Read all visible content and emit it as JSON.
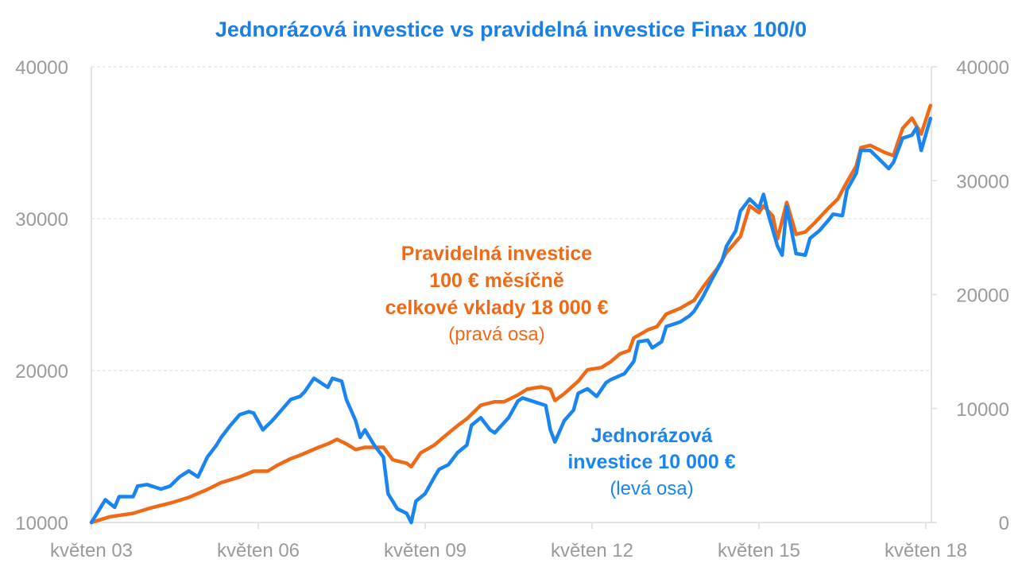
{
  "chart_data": {
    "type": "line",
    "title": "Jednorázová investice vs pravidelná investice Finax 100/0",
    "x_unit": "months since May 2003",
    "x_ticks": [
      {
        "month": 0,
        "label": "květen 03"
      },
      {
        "month": 36,
        "label": "květen 06"
      },
      {
        "month": 72,
        "label": "květen 09"
      },
      {
        "month": 108,
        "label": "květen 12"
      },
      {
        "month": 144,
        "label": "květen 15"
      },
      {
        "month": 180,
        "label": "květen 18"
      }
    ],
    "xlim": [
      0,
      180
    ],
    "y_left": {
      "ylim": [
        10000,
        40000
      ],
      "ticks": [
        "10000",
        "20000",
        "30000",
        "40000"
      ]
    },
    "y_right": {
      "ylim": [
        0,
        40000
      ],
      "ticks": [
        "0",
        "10000",
        "20000",
        "30000",
        "40000"
      ]
    },
    "grid": true,
    "colors": {
      "title": "#1a7fe6",
      "lump": "#1a85f0",
      "regular": "#ef6a17",
      "axis": "#9a9a9a"
    },
    "annotations": {
      "regular": [
        "Pravidelná investice",
        "100 € měsíčně",
        "celkové vklady 18 000 €",
        "(pravá osa)"
      ],
      "lump": [
        "Jednorázová",
        "investice 10 000 €",
        "(levá osa)"
      ]
    },
    "series": [
      {
        "name": "Jednorázová investice 10 000 € (levá osa)",
        "axis": "left",
        "points": [
          [
            0,
            10000
          ],
          [
            3,
            11500
          ],
          [
            5,
            11000
          ],
          [
            6,
            11700
          ],
          [
            9,
            11700
          ],
          [
            10,
            12400
          ],
          [
            12,
            12500
          ],
          [
            15,
            12200
          ],
          [
            17,
            12400
          ],
          [
            19,
            13000
          ],
          [
            21,
            13400
          ],
          [
            23,
            13000
          ],
          [
            25,
            14300
          ],
          [
            27,
            15100
          ],
          [
            28,
            15600
          ],
          [
            30,
            16400
          ],
          [
            32,
            17100
          ],
          [
            34,
            17300
          ],
          [
            35,
            17200
          ],
          [
            37,
            16100
          ],
          [
            39,
            16700
          ],
          [
            41,
            17400
          ],
          [
            43,
            18100
          ],
          [
            45,
            18300
          ],
          [
            46,
            18600
          ],
          [
            48,
            19500
          ],
          [
            51,
            18900
          ],
          [
            52,
            19500
          ],
          [
            54,
            19300
          ],
          [
            55,
            18100
          ],
          [
            57,
            16700
          ],
          [
            58,
            15600
          ],
          [
            59,
            16100
          ],
          [
            61,
            15100
          ],
          [
            63,
            14300
          ],
          [
            64,
            11900
          ],
          [
            66,
            10900
          ],
          [
            68,
            10600
          ],
          [
            69,
            10000
          ],
          [
            70,
            11400
          ],
          [
            72,
            11900
          ],
          [
            74,
            13000
          ],
          [
            75,
            13500
          ],
          [
            77,
            13800
          ],
          [
            79,
            14600
          ],
          [
            81,
            15100
          ],
          [
            82,
            16400
          ],
          [
            84,
            16900
          ],
          [
            86,
            16100
          ],
          [
            87,
            15900
          ],
          [
            90,
            16900
          ],
          [
            92,
            18000
          ],
          [
            93,
            18200
          ],
          [
            95,
            18000
          ],
          [
            98,
            17700
          ],
          [
            99,
            16100
          ],
          [
            100,
            15300
          ],
          [
            102,
            16700
          ],
          [
            104,
            17400
          ],
          [
            105,
            18500
          ],
          [
            107,
            18800
          ],
          [
            109,
            18300
          ],
          [
            111,
            19200
          ],
          [
            112,
            19400
          ],
          [
            115,
            19800
          ],
          [
            117,
            20600
          ],
          [
            118,
            21900
          ],
          [
            120,
            22000
          ],
          [
            121,
            21500
          ],
          [
            123,
            21900
          ],
          [
            124,
            22900
          ],
          [
            127,
            23200
          ],
          [
            129,
            23600
          ],
          [
            130,
            23900
          ],
          [
            132,
            24900
          ],
          [
            134,
            26100
          ],
          [
            136,
            27200
          ],
          [
            137,
            28200
          ],
          [
            139,
            29200
          ],
          [
            140,
            30500
          ],
          [
            142,
            31300
          ],
          [
            144,
            30700
          ],
          [
            145,
            31600
          ],
          [
            146,
            30300
          ],
          [
            148,
            28200
          ],
          [
            149,
            27600
          ],
          [
            150,
            30800
          ],
          [
            152,
            27700
          ],
          [
            154,
            27600
          ],
          [
            155,
            28700
          ],
          [
            157,
            29200
          ],
          [
            159,
            29900
          ],
          [
            160,
            30300
          ],
          [
            162,
            30200
          ],
          [
            163,
            31900
          ],
          [
            165,
            33000
          ],
          [
            166,
            34500
          ],
          [
            168,
            34500
          ],
          [
            170,
            33900
          ],
          [
            172,
            33300
          ],
          [
            173,
            33700
          ],
          [
            175,
            35300
          ],
          [
            177,
            35500
          ],
          [
            178,
            36000
          ],
          [
            179,
            34500
          ],
          [
            181,
            36600
          ]
        ]
      },
      {
        "name": "Pravidelná investice 100 € měsíčně (pravá osa)",
        "axis": "right",
        "points": [
          [
            0,
            0
          ],
          [
            4,
            500
          ],
          [
            9,
            800
          ],
          [
            13,
            1300
          ],
          [
            17,
            1700
          ],
          [
            21,
            2200
          ],
          [
            25,
            2900
          ],
          [
            28,
            3500
          ],
          [
            32,
            4000
          ],
          [
            35,
            4500
          ],
          [
            38,
            4500
          ],
          [
            40,
            5000
          ],
          [
            43,
            5600
          ],
          [
            45,
            5900
          ],
          [
            49,
            6600
          ],
          [
            51,
            6900
          ],
          [
            53,
            7300
          ],
          [
            55,
            6900
          ],
          [
            57,
            6400
          ],
          [
            59,
            6600
          ],
          [
            61,
            6600
          ],
          [
            63,
            6600
          ],
          [
            65,
            5500
          ],
          [
            68,
            5200
          ],
          [
            69,
            4900
          ],
          [
            71,
            6100
          ],
          [
            74,
            6800
          ],
          [
            76,
            7500
          ],
          [
            79,
            8500
          ],
          [
            81,
            9100
          ],
          [
            84,
            10300
          ],
          [
            87,
            10600
          ],
          [
            89,
            10600
          ],
          [
            92,
            11200
          ],
          [
            94,
            11700
          ],
          [
            97,
            11900
          ],
          [
            99,
            11700
          ],
          [
            100,
            10700
          ],
          [
            102,
            11300
          ],
          [
            105,
            12400
          ],
          [
            107,
            13400
          ],
          [
            110,
            13600
          ],
          [
            112,
            14100
          ],
          [
            114,
            14800
          ],
          [
            116,
            15100
          ],
          [
            117,
            16200
          ],
          [
            120,
            16900
          ],
          [
            122,
            17200
          ],
          [
            124,
            18300
          ],
          [
            127,
            18800
          ],
          [
            130,
            19500
          ],
          [
            132,
            20700
          ],
          [
            135,
            22300
          ],
          [
            137,
            23700
          ],
          [
            140,
            25100
          ],
          [
            142,
            27800
          ],
          [
            144,
            27200
          ],
          [
            145,
            27800
          ],
          [
            147,
            26900
          ],
          [
            148,
            24900
          ],
          [
            150,
            28100
          ],
          [
            152,
            25300
          ],
          [
            154,
            25500
          ],
          [
            156,
            26300
          ],
          [
            159,
            27600
          ],
          [
            161,
            28400
          ],
          [
            163,
            29900
          ],
          [
            165,
            31300
          ],
          [
            166,
            32900
          ],
          [
            168,
            33100
          ],
          [
            171,
            32500
          ],
          [
            173,
            32200
          ],
          [
            175,
            34600
          ],
          [
            177,
            35500
          ],
          [
            179,
            34100
          ],
          [
            181,
            36600
          ]
        ]
      }
    ]
  }
}
